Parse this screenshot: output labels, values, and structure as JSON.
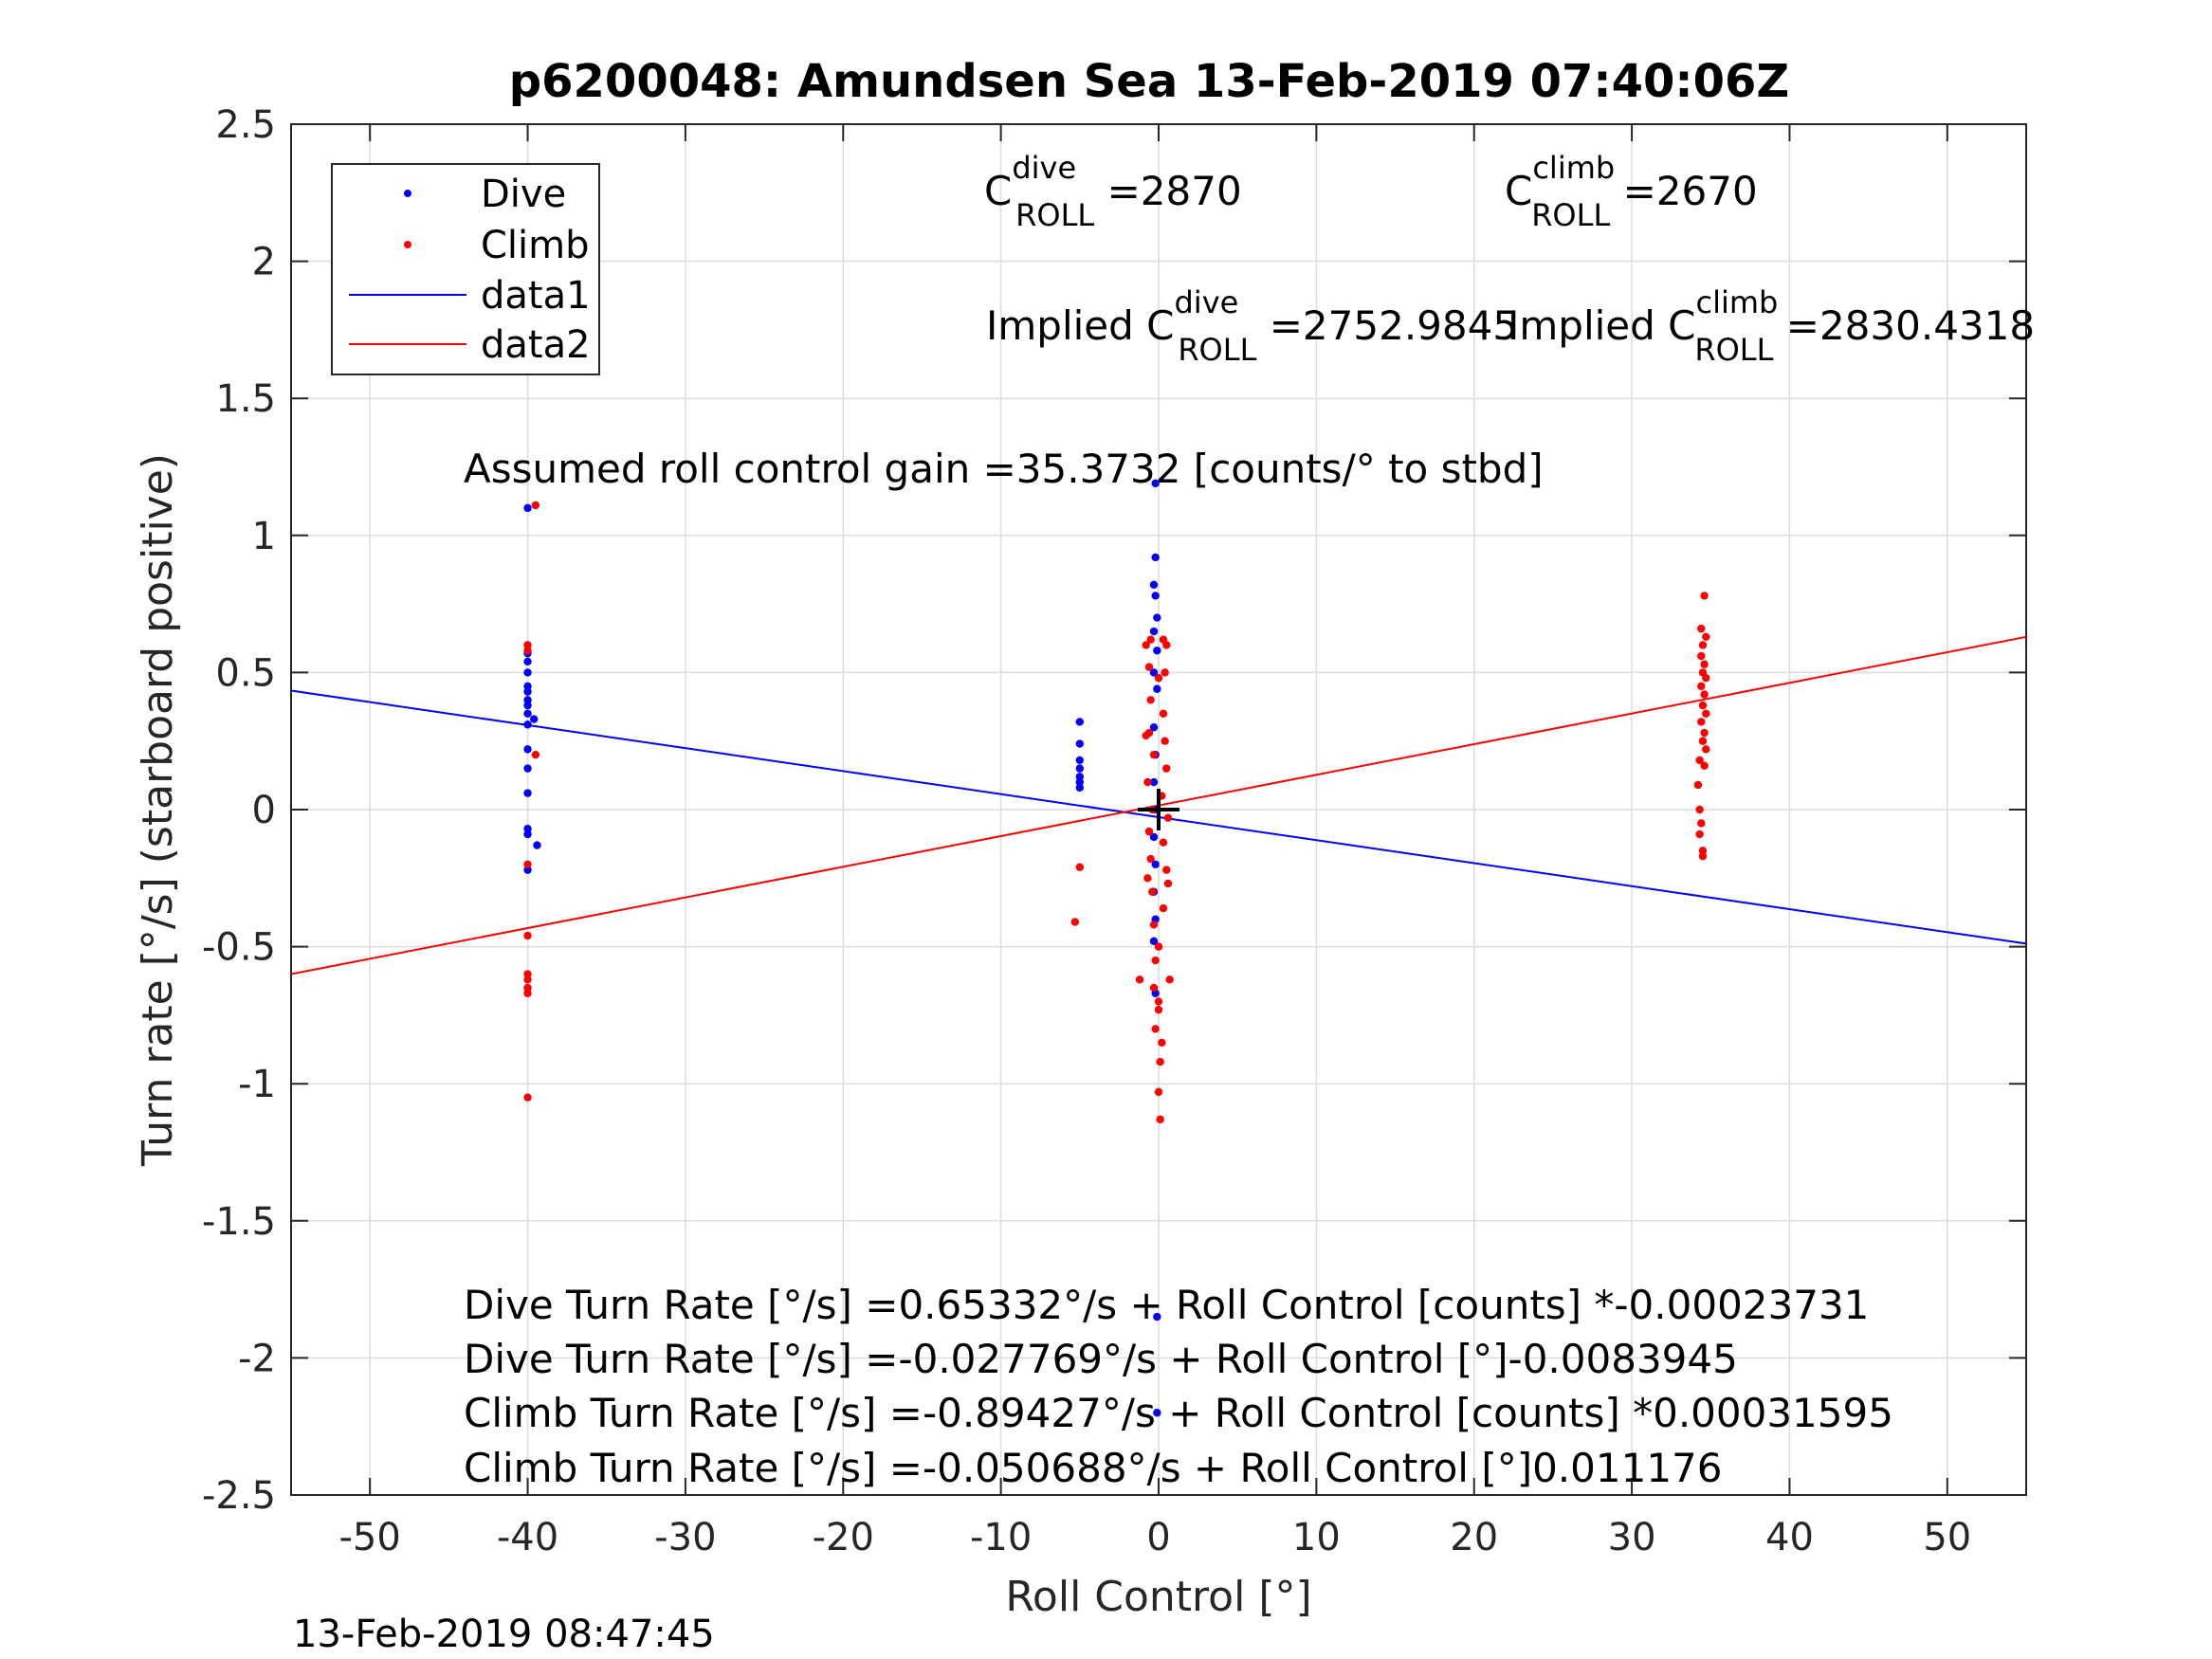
{
  "chart_data": {
    "type": "scatter",
    "title": "p6200048: Amundsen Sea 13-Feb-2019 07:40:06Z",
    "xlabel": "Roll Control [°]",
    "ylabel": "Turn rate [°/s] (starboard positive)",
    "xlim": [
      -55,
      55
    ],
    "ylim": [
      -2.5,
      2.5
    ],
    "xticks": [
      -50,
      -40,
      -30,
      -20,
      -10,
      0,
      10,
      20,
      30,
      40,
      50
    ],
    "yticks": [
      -2.5,
      -2,
      -1.5,
      -1,
      -0.5,
      0,
      0.5,
      1,
      1.5,
      2,
      2.5
    ],
    "xtick_labels": [
      "-50",
      "-40",
      "-30",
      "-20",
      "-10",
      "0",
      "10",
      "20",
      "30",
      "40",
      "50"
    ],
    "ytick_labels": [
      "-2.5",
      "-2",
      "-1.5",
      "-1",
      "-0.5",
      "0",
      "0.5",
      "1",
      "1.5",
      "2",
      "2.5"
    ],
    "grid": true,
    "legend_position": "top-left",
    "series": [
      {
        "name": "Dive",
        "kind": "points",
        "color": "#0000ff",
        "points": [
          [
            -40,
            1.1
          ],
          [
            -40,
            0.57
          ],
          [
            -40,
            0.54
          ],
          [
            -40,
            0.5
          ],
          [
            -40,
            0.45
          ],
          [
            -40,
            0.43
          ],
          [
            -40,
            0.4
          ],
          [
            -40,
            0.38
          ],
          [
            -40,
            0.35
          ],
          [
            -40,
            0.31
          ],
          [
            -40,
            0.22
          ],
          [
            -40,
            0.15
          ],
          [
            -40,
            0.06
          ],
          [
            -40,
            -0.07
          ],
          [
            -40,
            -0.09
          ],
          [
            -40,
            -0.22
          ],
          [
            -39.6,
            0.33
          ],
          [
            -39.4,
            -0.13
          ],
          [
            -5,
            0.32
          ],
          [
            -5,
            0.24
          ],
          [
            -5,
            0.18
          ],
          [
            -5,
            0.15
          ],
          [
            -5,
            0.12
          ],
          [
            -5,
            0.1
          ],
          [
            -5,
            0.08
          ],
          [
            -0.2,
            1.19
          ],
          [
            -0.2,
            0.92
          ],
          [
            -0.3,
            0.82
          ],
          [
            -0.2,
            0.78
          ],
          [
            -0.1,
            0.7
          ],
          [
            -0.3,
            0.65
          ],
          [
            -0.1,
            0.58
          ],
          [
            -0.3,
            0.5
          ],
          [
            -0.1,
            0.44
          ],
          [
            -0.3,
            0.3
          ],
          [
            -0.2,
            0.2
          ],
          [
            -0.3,
            0.1
          ],
          [
            -0.2,
            0.0
          ],
          [
            -0.3,
            -0.1
          ],
          [
            -0.2,
            -0.2
          ],
          [
            -0.3,
            -0.3
          ],
          [
            -0.2,
            -0.4
          ],
          [
            -0.3,
            -0.48
          ],
          [
            -0.2,
            -0.67
          ],
          [
            -0.1,
            -1.85
          ],
          [
            -0.1,
            -2.2
          ]
        ]
      },
      {
        "name": "Climb",
        "kind": "points",
        "color": "#ff0000",
        "points": [
          [
            -39.5,
            1.11
          ],
          [
            -40,
            0.6
          ],
          [
            -40,
            0.58
          ],
          [
            -39.5,
            0.2
          ],
          [
            -40,
            -0.2
          ],
          [
            -40,
            -0.46
          ],
          [
            -40,
            -0.6
          ],
          [
            -40,
            -0.62
          ],
          [
            -40,
            -0.65
          ],
          [
            -40,
            -0.67
          ],
          [
            -40,
            -1.05
          ],
          [
            -5,
            -0.21
          ],
          [
            -5.3,
            -0.41
          ],
          [
            -0.5,
            0.62
          ],
          [
            0.3,
            0.62
          ],
          [
            0.5,
            0.6
          ],
          [
            -0.8,
            0.6
          ],
          [
            -0.6,
            0.52
          ],
          [
            0.4,
            0.5
          ],
          [
            0,
            0.48
          ],
          [
            -0.5,
            0.4
          ],
          [
            0.3,
            0.35
          ],
          [
            -0.6,
            0.28
          ],
          [
            -0.8,
            0.27
          ],
          [
            0.4,
            0.25
          ],
          [
            -0.3,
            0.2
          ],
          [
            0.5,
            0.15
          ],
          [
            -0.7,
            0.1
          ],
          [
            0.2,
            0.05
          ],
          [
            -0.4,
            0.0
          ],
          [
            0.6,
            -0.03
          ],
          [
            -0.6,
            -0.08
          ],
          [
            0.3,
            -0.12
          ],
          [
            -0.5,
            -0.18
          ],
          [
            0.5,
            -0.22
          ],
          [
            -0.7,
            -0.25
          ],
          [
            0.6,
            -0.27
          ],
          [
            -0.4,
            -0.3
          ],
          [
            0.3,
            -0.36
          ],
          [
            -0.3,
            -0.42
          ],
          [
            0,
            -0.5
          ],
          [
            -0.2,
            -0.55
          ],
          [
            0.7,
            -0.62
          ],
          [
            -1.2,
            -0.62
          ],
          [
            -0.3,
            -0.65
          ],
          [
            0,
            -0.7
          ],
          [
            0,
            -0.73
          ],
          [
            0.1,
            -0.92
          ],
          [
            0,
            -1.03
          ],
          [
            0.1,
            -1.13
          ],
          [
            -0.2,
            -0.8
          ],
          [
            0.2,
            -0.85
          ],
          [
            34.6,
            0.78
          ],
          [
            34.4,
            0.66
          ],
          [
            34.7,
            0.63
          ],
          [
            34.5,
            0.6
          ],
          [
            34.4,
            0.56
          ],
          [
            34.6,
            0.53
          ],
          [
            34.5,
            0.5
          ],
          [
            34.7,
            0.48
          ],
          [
            34.4,
            0.45
          ],
          [
            34.6,
            0.42
          ],
          [
            34.5,
            0.38
          ],
          [
            34.7,
            0.35
          ],
          [
            34.4,
            0.32
          ],
          [
            34.6,
            0.28
          ],
          [
            34.5,
            0.25
          ],
          [
            34.7,
            0.22
          ],
          [
            34.3,
            0.18
          ],
          [
            34.6,
            0.16
          ],
          [
            34.2,
            0.09
          ],
          [
            34.3,
            0.0
          ],
          [
            34.4,
            -0.05
          ],
          [
            34.3,
            -0.09
          ],
          [
            34.5,
            -0.15
          ],
          [
            34.5,
            -0.17
          ]
        ]
      },
      {
        "name": "data1",
        "kind": "line",
        "color": "#0000ff",
        "x": [
          -55,
          55
        ],
        "y": [
          0.434,
          -0.489
        ]
      },
      {
        "name": "data2",
        "kind": "line",
        "color": "#ff0000",
        "x": [
          -55,
          55
        ],
        "y": [
          -0.6,
          0.63
        ]
      }
    ],
    "marker": {
      "kind": "plus",
      "color": "#000000",
      "x": 0,
      "y": 0
    },
    "annotations": {
      "c_roll_dive_prefix": "C",
      "c_roll_dive_sup": "dive",
      "c_roll_dive_sub": "ROLL",
      "c_roll_dive_value": " =2870",
      "c_roll_climb_prefix": "C",
      "c_roll_climb_sup": "climb",
      "c_roll_climb_sub": "ROLL",
      "c_roll_climb_value": " =2670",
      "implied_dive_prefix": "Implied C",
      "implied_dive_sup": "dive",
      "implied_dive_sub": "ROLL",
      "implied_dive_value": " =2752.9845",
      "implied_climb_prefix": "Implied C",
      "implied_climb_sup": "climb",
      "implied_climb_sub": "ROLL",
      "implied_climb_value": " =2830.4318",
      "gain": "Assumed roll control gain =35.3732 [counts/° to stbd]",
      "eq1": "Dive Turn Rate [°/s] =0.65332°/s + Roll Control [counts] *-0.00023731",
      "eq2": "Dive Turn Rate [°/s] =-0.027769°/s + Roll Control [°]-0.0083945",
      "eq3": "Climb Turn Rate [°/s] =-0.89427°/s + Roll Control [counts] *0.00031595",
      "eq4": "Climb Turn Rate [°/s] =-0.050688°/s + Roll Control [°]0.011176"
    }
  },
  "timestamp": "13-Feb-2019 08:47:45"
}
